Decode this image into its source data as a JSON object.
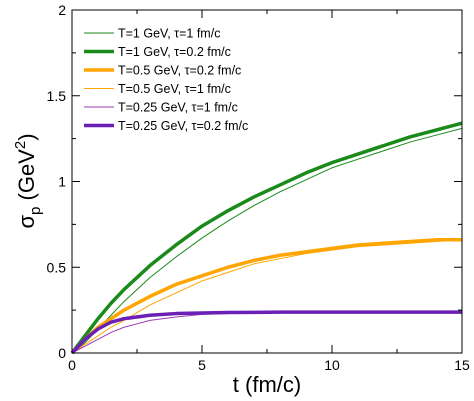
{
  "chart_data": {
    "type": "line",
    "xlabel": "t  (fm/c)",
    "ylabel_main": "σ",
    "ylabel_sub": "p",
    "ylabel_unit_left": " (GeV",
    "ylabel_unit_sup": "2",
    "ylabel_unit_right": ")",
    "xlim": [
      0,
      15
    ],
    "ylim": [
      0,
      2
    ],
    "xticks": [
      0,
      5,
      10,
      15
    ],
    "xtick_labels": [
      "0",
      "5",
      "10",
      "15"
    ],
    "yticks": [
      0,
      0.5,
      1,
      1.5,
      2
    ],
    "ytick_labels": [
      "0",
      "0.5",
      "1",
      "1.5",
      "2"
    ],
    "grid": false,
    "legend_position": "top-left",
    "series": [
      {
        "name": "T=1 GeV, τ=1 fm/c",
        "color": "#1a8a1a",
        "style": "thin",
        "x": [
          0,
          0.5,
          1,
          1.5,
          2,
          3,
          4,
          5,
          6,
          7,
          8,
          9,
          10,
          11,
          12,
          13,
          14,
          15
        ],
        "y": [
          0,
          0.06,
          0.14,
          0.22,
          0.3,
          0.44,
          0.56,
          0.67,
          0.77,
          0.86,
          0.94,
          1.01,
          1.08,
          1.13,
          1.18,
          1.23,
          1.27,
          1.31
        ]
      },
      {
        "name": "T=1 GeV, τ=0.2 fm/c",
        "color": "#1a8a1a",
        "style": "thick",
        "x": [
          0,
          0.5,
          1,
          1.5,
          2,
          3,
          4,
          5,
          6,
          7,
          8,
          9,
          10,
          11,
          12,
          13,
          14,
          15
        ],
        "y": [
          0,
          0.1,
          0.2,
          0.29,
          0.37,
          0.51,
          0.63,
          0.74,
          0.83,
          0.91,
          0.98,
          1.05,
          1.11,
          1.16,
          1.21,
          1.26,
          1.3,
          1.34
        ]
      },
      {
        "name": "T=0.5 GeV, τ=0.2 fm/c",
        "color": "#ffa500",
        "style": "thick",
        "x": [
          0,
          0.5,
          1,
          1.5,
          2,
          3,
          4,
          5,
          6,
          7,
          8,
          9,
          10,
          11,
          12,
          13,
          14,
          15
        ],
        "y": [
          0,
          0.08,
          0.15,
          0.2,
          0.25,
          0.33,
          0.4,
          0.45,
          0.5,
          0.54,
          0.57,
          0.59,
          0.61,
          0.63,
          0.64,
          0.65,
          0.66,
          0.66
        ]
      },
      {
        "name": "T=0.5 GeV, τ=1 fm/c",
        "color": "#ffa500",
        "style": "thin",
        "x": [
          0,
          0.5,
          1,
          1.5,
          2,
          3,
          4,
          5,
          6,
          7,
          8,
          9,
          10,
          11,
          12,
          13,
          14,
          15
        ],
        "y": [
          0,
          0.05,
          0.1,
          0.15,
          0.19,
          0.28,
          0.35,
          0.42,
          0.47,
          0.52,
          0.55,
          0.58,
          0.6,
          0.62,
          0.63,
          0.64,
          0.65,
          0.66
        ]
      },
      {
        "name": "T=0.25 GeV, τ=1 fm/c",
        "color": "#9b3fb5",
        "style": "thin",
        "x": [
          0,
          0.5,
          1,
          1.5,
          2,
          3,
          4,
          5,
          6,
          7,
          8,
          10,
          12,
          15
        ],
        "y": [
          0,
          0.04,
          0.08,
          0.12,
          0.15,
          0.19,
          0.21,
          0.225,
          0.23,
          0.235,
          0.237,
          0.238,
          0.238,
          0.238
        ]
      },
      {
        "name": "T=0.25 GeV, τ=0.2 fm/c",
        "color": "#6a1fb5",
        "style": "thick",
        "x": [
          0,
          0.5,
          1,
          1.5,
          2,
          3,
          4,
          5,
          6,
          7,
          8,
          10,
          12,
          15
        ],
        "y": [
          0,
          0.08,
          0.14,
          0.18,
          0.2,
          0.22,
          0.23,
          0.233,
          0.236,
          0.237,
          0.238,
          0.238,
          0.238,
          0.238
        ]
      }
    ]
  }
}
